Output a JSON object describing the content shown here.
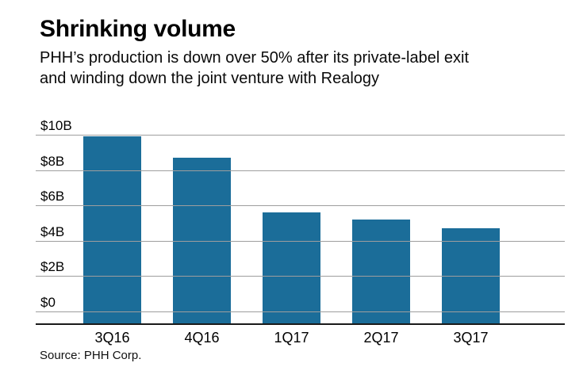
{
  "header": {
    "title": "Shrinking volume",
    "subtitle": "PHH’s production is down over 50% after its private-label exit and winding down the joint venture with Realogy"
  },
  "chart_data": {
    "type": "bar",
    "title": "Shrinking volume",
    "categories": [
      "3Q16",
      "4Q16",
      "1Q17",
      "2Q17",
      "3Q17"
    ],
    "values": [
      9.9,
      8.7,
      5.6,
      5.2,
      4.7
    ],
    "xlabel": "",
    "ylabel": "",
    "ytick_labels": [
      "$10B",
      "$8B",
      "$6B",
      "$4B",
      "$2B",
      "$0"
    ],
    "ylim": [
      0,
      10
    ],
    "grid": true,
    "legend": "none",
    "bar_color": "#1b6d99",
    "units": "billions of dollars"
  },
  "footer": {
    "source": "Source: PHH Corp."
  }
}
